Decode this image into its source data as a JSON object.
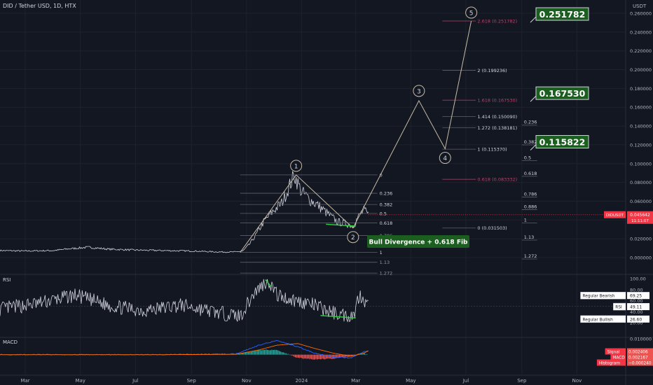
{
  "header": {
    "symbol_title": "DID / Tether USD, 1D, HTX",
    "currency": "USDT"
  },
  "colors": {
    "background": "#131722",
    "grid": "#1e222d",
    "text": "#b2b5be",
    "price_line": "#d1d4dc",
    "wave_line": "#c8bca6",
    "fib_line": "#5d606b",
    "fib_ext_pink": "#b4466a",
    "bull_green": "#2ecc40",
    "target_green": "#1b5e20",
    "price_tag_red": "#f23645",
    "macd_blue": "#2962ff",
    "signal_orange": "#ff6d00",
    "hist_up": "#26a69a",
    "hist_down": "#ef5350"
  },
  "chart_data": [
    {
      "type": "line",
      "panel": "price",
      "x_axis": {
        "month_labels": [
          "Mar",
          "May",
          "Jul",
          "Sep",
          "Nov",
          "2024",
          "Mar",
          "May",
          "Jul",
          "Sep",
          "Nov"
        ],
        "range": [
          "2023-02-01",
          "2024-12-25"
        ]
      },
      "y_axis": {
        "tick_labels": [
          "0.260000",
          "0.240000",
          "0.220000",
          "0.200000",
          "0.180000",
          "0.160000",
          "0.140000",
          "0.120000",
          "0.100000",
          "0.080000",
          "0.060000",
          "0.040000",
          "0.020000",
          "0.000000"
        ],
        "ylim": [
          -0.008,
          0.27
        ]
      },
      "series": [
        {
          "x": [
            "2023-02-01",
            "2023-03-01",
            "2023-04-01",
            "2023-04-20",
            "2023-05-10",
            "2023-06-01",
            "2023-07-01",
            "2023-08-01",
            "2023-09-01",
            "2023-10-01",
            "2023-10-20",
            "2023-10-28",
            "2023-11-05",
            "2023-11-12",
            "2023-11-20",
            "2023-12-01",
            "2023-12-10",
            "2023-12-18",
            "2023-12-24",
            "2024-01-01",
            "2024-01-10",
            "2024-01-20",
            "2024-02-01",
            "2024-02-10",
            "2024-02-20",
            "2024-02-27",
            "2024-03-05",
            "2024-03-10",
            "2024-03-15"
          ],
          "y": [
            0.0075,
            0.007,
            0.0075,
            0.0095,
            0.011,
            0.009,
            0.008,
            0.0075,
            0.007,
            0.006,
            0.006,
            0.007,
            0.015,
            0.025,
            0.038,
            0.05,
            0.058,
            0.075,
            0.088,
            0.07,
            0.062,
            0.055,
            0.045,
            0.038,
            0.036,
            0.034,
            0.045,
            0.05,
            0.0456
          ]
        }
      ],
      "current_price": {
        "label": "DIDUSDT",
        "value": "0.045642",
        "countdown": "11:11:07"
      },
      "waves": {
        "labels": [
          "1",
          "2",
          "3",
          "4",
          "5"
        ],
        "points": [
          {
            "x": "2023-10-25",
            "y": 0.0055
          },
          {
            "x": "2023-12-26",
            "y": 0.088
          },
          {
            "x": "2024-02-27",
            "y": 0.0315
          },
          {
            "x": "2024-05-10",
            "y": 0.167
          },
          {
            "x": "2024-06-08",
            "y": 0.1158
          },
          {
            "x": "2024-07-07",
            "y": 0.2518
          }
        ]
      },
      "fib_retracement": {
        "levels": [
          {
            "label": "0",
            "value": 0.088
          },
          {
            "label": "0.236",
            "value": 0.0685
          },
          {
            "label": "0.382",
            "value": 0.0565
          },
          {
            "label": "0.5",
            "value": 0.047
          },
          {
            "label": "0.618",
            "value": 0.037
          },
          {
            "label": "0.786",
            "value": 0.0235
          },
          {
            "label": "1",
            "value": 0.0055
          },
          {
            "label": "1.13",
            "value": -0.005
          },
          {
            "label": "1.272",
            "value": -0.0165
          }
        ]
      },
      "fib_extension": {
        "levels": [
          {
            "label": "2.618 (0.251782)",
            "value": 0.251782,
            "highlight": true
          },
          {
            "label": "2 (0.199236)",
            "value": 0.199236
          },
          {
            "label": "1.618 (0.167530)",
            "value": 0.16753,
            "highlight": true
          },
          {
            "label": "1.414 (0.150090)",
            "value": 0.15009
          },
          {
            "label": "1.272 (0.138181)",
            "value": 0.138181
          },
          {
            "label": "1 (0.115370)",
            "value": 0.11537
          },
          {
            "label": "0.618 (0.083332)",
            "value": 0.083332,
            "highlight": true
          },
          {
            "label": "0 (0.031503)",
            "value": 0.031503
          }
        ]
      },
      "fib_right": {
        "levels": [
          {
            "label": "0.236",
            "value": 0.141
          },
          {
            "label": "0.382",
            "value": 0.12
          },
          {
            "label": "0.5",
            "value": 0.1033
          },
          {
            "label": "0.618",
            "value": 0.0865
          },
          {
            "label": "0.786",
            "value": 0.0645
          },
          {
            "label": "0.886",
            "value": 0.051
          },
          {
            "label": "1",
            "value": 0.0369
          },
          {
            "label": "1.13",
            "value": 0.0186
          },
          {
            "label": "1.272",
            "value": -0.0015
          }
        ]
      },
      "targets": [
        "0.251782",
        "0.167530",
        "0.115822"
      ],
      "annotation": "Bull Divergence + 0.618 Fib"
    },
    {
      "type": "line",
      "panel": "rsi",
      "title": "RSI",
      "y_axis": {
        "tick_labels": [
          "100.00",
          "80.00",
          "60.00",
          "40.00",
          "20.00"
        ],
        "ylim": [
          5,
          105
        ]
      },
      "x": [
        "2023-02-01",
        "2023-03-15",
        "2023-04-25",
        "2023-06-05",
        "2023-07-10",
        "2023-08-20",
        "2023-10-01",
        "2023-10-25",
        "2023-11-10",
        "2023-11-25",
        "2023-12-05",
        "2023-12-20",
        "2024-01-10",
        "2024-02-01",
        "2024-02-20",
        "2024-02-28",
        "2024-03-05",
        "2024-03-10",
        "2024-03-15"
      ],
      "y": [
        45,
        55,
        70,
        50,
        42,
        52,
        38,
        32,
        75,
        98,
        70,
        62,
        55,
        40,
        33,
        34,
        72,
        64,
        49.11
      ],
      "levels": [
        {
          "label": "Regular Bearish",
          "value": "69.25"
        },
        {
          "label": "RSI",
          "value": "49.11"
        },
        {
          "label": "Regular Bullish",
          "value": "26.60"
        }
      ]
    },
    {
      "type": "bar",
      "panel": "macd",
      "title": "MACD",
      "y_axis": {
        "tick_labels": [
          "0.010000",
          "-0.005000"
        ],
        "ylim": [
          -0.0055,
          0.011
        ]
      },
      "x": [
        "2023-02-01",
        "2023-08-01",
        "2023-10-20",
        "2023-11-15",
        "2023-12-05",
        "2023-12-28",
        "2024-01-15",
        "2024-02-05",
        "2024-02-25",
        "2024-03-10",
        "2024-03-15"
      ],
      "macd": [
        0,
        0,
        0.0005,
        0.006,
        0.009,
        0.005,
        0.001,
        -0.0015,
        -0.002,
        0.002,
        0.002167
      ],
      "signal": [
        0,
        0,
        0.0002,
        0.003,
        0.006,
        0.007,
        0.004,
        0.001,
        -0.001,
        0.001,
        0.002406
      ],
      "levels": [
        {
          "label": "Signal",
          "value": "0.002406"
        },
        {
          "label": "MACD",
          "value": "0.002167"
        },
        {
          "label": "Histogram",
          "value": "−0.000240"
        }
      ]
    }
  ]
}
